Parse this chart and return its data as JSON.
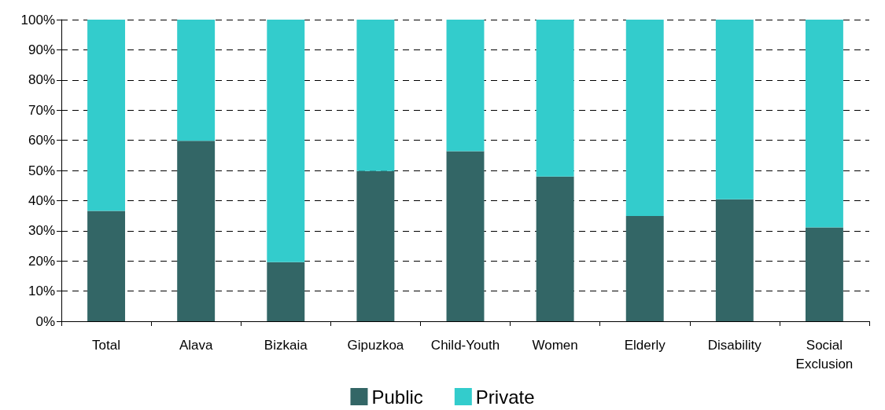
{
  "chart_data": {
    "type": "bar",
    "stacked": true,
    "categories": [
      "Total",
      "Alava",
      "Bizkaia",
      "Gipuzkoa",
      "Child-Youth",
      "Women",
      "Elderly",
      "Disability",
      "Social\nExclusion"
    ],
    "series": [
      {
        "name": "Public",
        "color": "#336666",
        "values": [
          36.6,
          59.8,
          19.6,
          49.8,
          56.4,
          48.0,
          34.9,
          40.4,
          31.1
        ]
      },
      {
        "name": "Private",
        "color": "#33cccc",
        "values": [
          63.4,
          40.2,
          80.4,
          50.2,
          43.6,
          52.0,
          65.1,
          59.6,
          68.9
        ]
      }
    ],
    "ylim": [
      0,
      100
    ],
    "yticks": [
      {
        "value": 0,
        "label": "0%"
      },
      {
        "value": 10,
        "label": "10%"
      },
      {
        "value": 20,
        "label": "20%"
      },
      {
        "value": 30,
        "label": "30%"
      },
      {
        "value": 40,
        "label": "40%"
      },
      {
        "value": 50,
        "label": "50%"
      },
      {
        "value": 60,
        "label": "60%"
      },
      {
        "value": 70,
        "label": "70%"
      },
      {
        "value": 80,
        "label": "80%"
      },
      {
        "value": 90,
        "label": "90%"
      },
      {
        "value": 100,
        "label": "100%"
      }
    ],
    "grid": "y",
    "legend": "bottom"
  }
}
